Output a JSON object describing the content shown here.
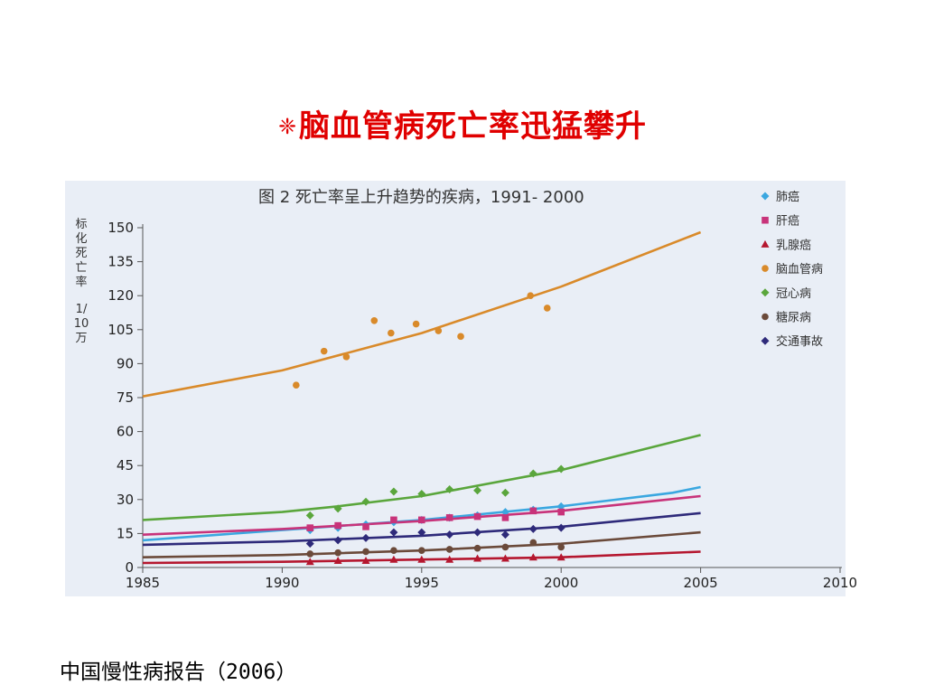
{
  "slide": {
    "title_bullet": "❈",
    "title": "脑血管病死亡率迅猛攀升",
    "source": "中国慢性病报告（2006）"
  },
  "chart_data": {
    "type": "scatter",
    "title": "图 2    死亡率呈上升趋势的疾病，1991- 2000",
    "xlabel": "",
    "ylabel_chars": [
      "标",
      "化",
      "死",
      "亡",
      "率",
      "1/",
      "10",
      "万"
    ],
    "xlim": [
      1985,
      2010
    ],
    "ylim": [
      0,
      150
    ],
    "xticks": [
      1985,
      1990,
      1995,
      2000,
      2005,
      2010
    ],
    "yticks": [
      0,
      15,
      30,
      45,
      60,
      75,
      90,
      105,
      120,
      135,
      150
    ],
    "legend_position": "top-right",
    "series": [
      {
        "name": "肺癌",
        "color": "#3aa7e0",
        "marker": "diamond",
        "points": [
          [
            1991,
            16.5
          ],
          [
            1992,
            17.5
          ],
          [
            1993,
            19
          ],
          [
            1994,
            20
          ],
          [
            1995,
            21
          ],
          [
            1996,
            22
          ],
          [
            1997,
            23
          ],
          [
            1998,
            24.5
          ],
          [
            1999,
            25.5
          ],
          [
            2000,
            27
          ]
        ],
        "trend": [
          [
            1985,
            12
          ],
          [
            1990,
            16.5
          ],
          [
            1995,
            21
          ],
          [
            2000,
            27
          ],
          [
            2004,
            33
          ],
          [
            2005,
            35.5
          ]
        ]
      },
      {
        "name": "肝癌",
        "color": "#c8337a",
        "marker": "square",
        "points": [
          [
            1991,
            17.5
          ],
          [
            1992,
            18.5
          ],
          [
            1993,
            18
          ],
          [
            1994,
            21
          ],
          [
            1995,
            21
          ],
          [
            1996,
            22
          ],
          [
            1997,
            22.5
          ],
          [
            1998,
            22
          ],
          [
            1999,
            25
          ],
          [
            2000,
            24.5
          ]
        ],
        "trend": [
          [
            1985,
            14.5
          ],
          [
            1990,
            17
          ],
          [
            1995,
            20.5
          ],
          [
            2000,
            25
          ],
          [
            2005,
            31.5
          ]
        ]
      },
      {
        "name": "乳腺癌",
        "color": "#b5172f",
        "marker": "triangle",
        "points": [
          [
            1991,
            2.5
          ],
          [
            1992,
            3
          ],
          [
            1993,
            3
          ],
          [
            1994,
            3.5
          ],
          [
            1995,
            3.5
          ],
          [
            1996,
            3.5
          ],
          [
            1997,
            4
          ],
          [
            1998,
            4
          ],
          [
            1999,
            4.5
          ],
          [
            2000,
            4.5
          ]
        ],
        "trend": [
          [
            1985,
            2
          ],
          [
            1990,
            2.5
          ],
          [
            1995,
            3.5
          ],
          [
            2000,
            4.5
          ],
          [
            2005,
            7
          ]
        ]
      },
      {
        "name": "脑血管病",
        "color": "#d98a2a",
        "marker": "circle",
        "points": [
          [
            1990.5,
            80.5
          ],
          [
            1991.5,
            95.5
          ],
          [
            1992.3,
            93
          ],
          [
            1993.3,
            109
          ],
          [
            1993.9,
            103.5
          ],
          [
            1994.8,
            107.5
          ],
          [
            1995.6,
            104.5
          ],
          [
            1996.4,
            102
          ],
          [
            1998.9,
            120
          ],
          [
            1999.5,
            114.5
          ]
        ],
        "trend": [
          [
            1985,
            75.5
          ],
          [
            1990,
            87
          ],
          [
            1995,
            103.5
          ],
          [
            2000,
            124
          ],
          [
            2005,
            148
          ]
        ]
      },
      {
        "name": "冠心病",
        "color": "#5aa63c",
        "marker": "diamond",
        "points": [
          [
            1991,
            23
          ],
          [
            1992,
            26
          ],
          [
            1993,
            29
          ],
          [
            1994,
            33.5
          ],
          [
            1995,
            32.5
          ],
          [
            1996,
            34.5
          ],
          [
            1997,
            34
          ],
          [
            1998,
            33
          ],
          [
            1999,
            41.5
          ],
          [
            2000,
            43.5
          ]
        ],
        "trend": [
          [
            1985,
            21
          ],
          [
            1990,
            24.5
          ],
          [
            1992,
            27
          ],
          [
            1995,
            31.5
          ],
          [
            2000,
            43
          ],
          [
            2005,
            58.5
          ]
        ]
      },
      {
        "name": "糖尿病",
        "color": "#6b4a3a",
        "marker": "circle",
        "points": [
          [
            1991,
            6
          ],
          [
            1992,
            6.5
          ],
          [
            1993,
            7
          ],
          [
            1994,
            7.5
          ],
          [
            1995,
            7.5
          ],
          [
            1996,
            8
          ],
          [
            1997,
            8.5
          ],
          [
            1998,
            9
          ],
          [
            1999,
            11
          ],
          [
            2000,
            9
          ]
        ],
        "trend": [
          [
            1985,
            4.5
          ],
          [
            1990,
            5.5
          ],
          [
            1995,
            7.5
          ],
          [
            2000,
            10.5
          ],
          [
            2005,
            15.5
          ]
        ]
      },
      {
        "name": "交通事故",
        "color": "#2e2a7a",
        "marker": "diamond",
        "points": [
          [
            1991,
            10.5
          ],
          [
            1992,
            12
          ],
          [
            1993,
            13
          ],
          [
            1994,
            15.5
          ],
          [
            1995,
            15.5
          ],
          [
            1996,
            14.5
          ],
          [
            1997,
            15.5
          ],
          [
            1998,
            14.5
          ],
          [
            1999,
            17
          ],
          [
            2000,
            17.5
          ]
        ],
        "trend": [
          [
            1985,
            10
          ],
          [
            1990,
            11.5
          ],
          [
            1995,
            14
          ],
          [
            2000,
            18
          ],
          [
            2005,
            24
          ]
        ]
      }
    ]
  }
}
